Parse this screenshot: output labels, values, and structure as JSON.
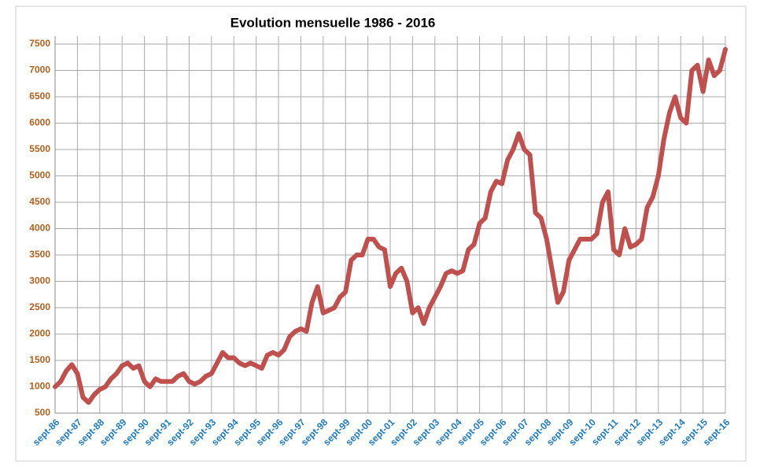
{
  "chart_data": {
    "type": "line",
    "title": "Evolution mensuelle 1986 - 2016",
    "categories": [
      "sept-86",
      null,
      null,
      null,
      "sept-87",
      null,
      null,
      null,
      "sept-88",
      null,
      null,
      null,
      "sept-89",
      null,
      null,
      null,
      "sept-90",
      null,
      null,
      null,
      "sept-91",
      null,
      null,
      null,
      "sept-92",
      null,
      null,
      null,
      "sept-93",
      null,
      null,
      null,
      "sept-94",
      null,
      null,
      null,
      "sept-95",
      null,
      null,
      null,
      "sept-96",
      null,
      null,
      null,
      "sept-97",
      null,
      null,
      null,
      "sept-98",
      null,
      null,
      null,
      "sept-99",
      null,
      null,
      null,
      "sept-00",
      null,
      null,
      null,
      "sept-01",
      null,
      null,
      null,
      "sept-02",
      null,
      null,
      null,
      "sept-03",
      null,
      null,
      null,
      "sept-04",
      null,
      null,
      null,
      "sept-05",
      null,
      null,
      null,
      "sept-06",
      null,
      null,
      null,
      "sept-07",
      null,
      null,
      null,
      "sept-08",
      null,
      null,
      null,
      "sept-09",
      null,
      null,
      null,
      "sept-10",
      null,
      null,
      null,
      "sept-11",
      null,
      null,
      null,
      "sept-12",
      null,
      null,
      null,
      "sept-13",
      null,
      null,
      null,
      "sept-14",
      null,
      null,
      null,
      "sept-15",
      null,
      null,
      null,
      "sept-16"
    ],
    "values": [
      1000,
      1100,
      1300,
      1420,
      1250,
      800,
      700,
      850,
      950,
      1000,
      1150,
      1250,
      1400,
      1450,
      1350,
      1400,
      1100,
      1000,
      1150,
      1100,
      1100,
      1100,
      1200,
      1250,
      1100,
      1050,
      1100,
      1200,
      1250,
      1450,
      1650,
      1550,
      1550,
      1450,
      1400,
      1450,
      1400,
      1350,
      1600,
      1650,
      1600,
      1700,
      1950,
      2050,
      2100,
      2050,
      2600,
      2900,
      2400,
      2450,
      2500,
      2700,
      2800,
      3400,
      3500,
      3500,
      3800,
      3800,
      3650,
      3600,
      2900,
      3150,
      3250,
      3000,
      2400,
      2500,
      2200,
      2500,
      2700,
      2900,
      3150,
      3200,
      3150,
      3200,
      3600,
      3700,
      4100,
      4200,
      4700,
      4900,
      4850,
      5300,
      5500,
      5800,
      5500,
      5400,
      4300,
      4200,
      3800,
      3200,
      2600,
      2800,
      3400,
      3600,
      3800,
      3800,
      3800,
      3900,
      4500,
      4700,
      3600,
      3500,
      4000,
      3650,
      3700,
      3800,
      4400,
      4600,
      5000,
      5700,
      6200,
      6500,
      6100,
      6000,
      7000,
      7100,
      6600,
      7200,
      6900,
      7000,
      7400
    ],
    "color": "#c0504d",
    "ylim": [
      500,
      7500
    ],
    "yticks": [
      500,
      1000,
      1500,
      2000,
      2500,
      3000,
      3500,
      4000,
      4500,
      5000,
      5500,
      6000,
      6500,
      7000,
      7500
    ],
    "grid": true
  }
}
